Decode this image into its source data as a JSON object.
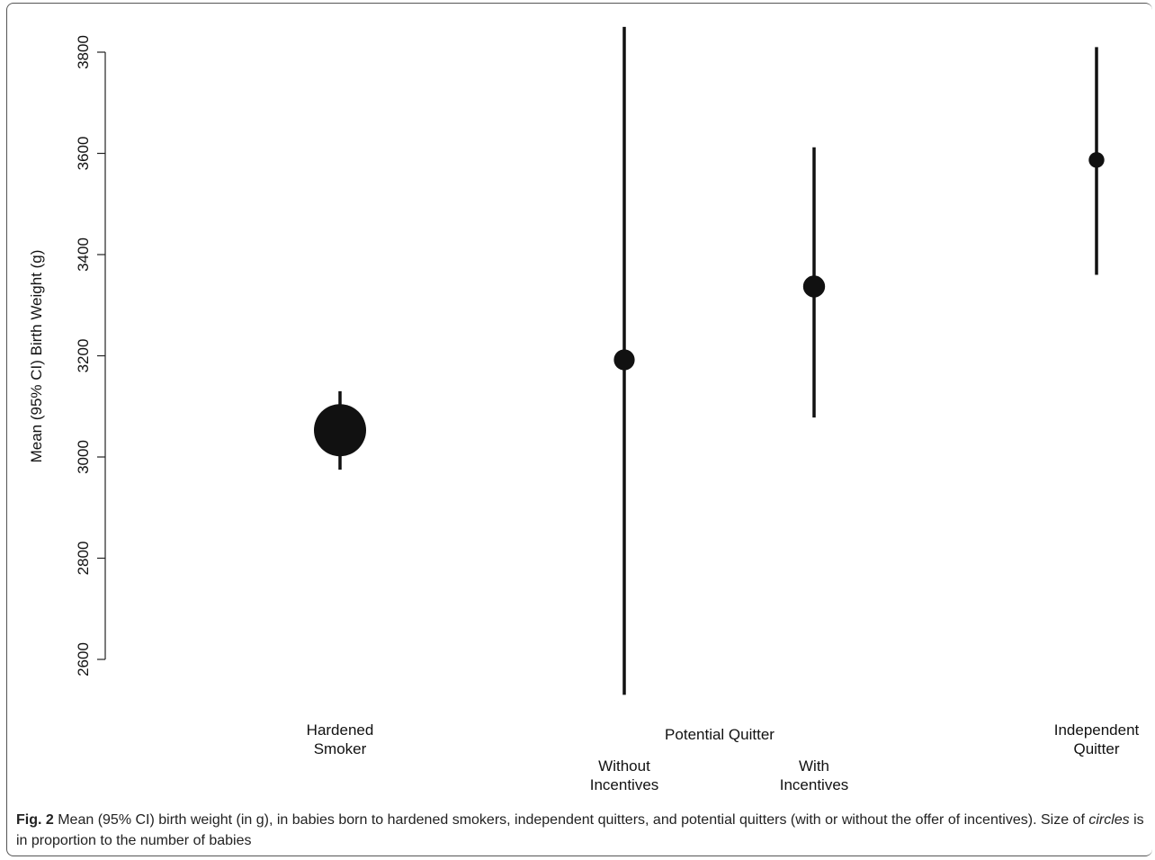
{
  "chart_data": {
    "type": "scatter",
    "ylabel": "Mean (95% CI) Birth Weight (g)",
    "ylim": [
      2530,
      3850
    ],
    "yticks": [
      2600,
      2800,
      3000,
      3200,
      3400,
      3600,
      3800
    ],
    "group_label": "Potential Quitter",
    "points": [
      {
        "label": "Hardened\nSmoker",
        "mean": 3053,
        "lower": 2975,
        "upper": 3130,
        "relative_size": 1.0
      },
      {
        "label": "Without\nIncentives",
        "mean": 3192,
        "lower": 2530,
        "upper": 3850,
        "relative_size": 0.4
      },
      {
        "label": "With\nIncentives",
        "mean": 3337,
        "lower": 3078,
        "upper": 3612,
        "relative_size": 0.42
      },
      {
        "label": "Independent\nQuitter",
        "mean": 3587,
        "lower": 3360,
        "upper": 3810,
        "relative_size": 0.3
      }
    ]
  },
  "caption": {
    "fig_label": "Fig. 2",
    "text_part1": " Mean (95% CI) birth weight (in g), in babies born to hardened smokers, independent quitters, and potential quitters (with or without the offer of incentives). Size of ",
    "italic_word": "circles",
    "text_part2": " is in proportion to the number of babies"
  }
}
